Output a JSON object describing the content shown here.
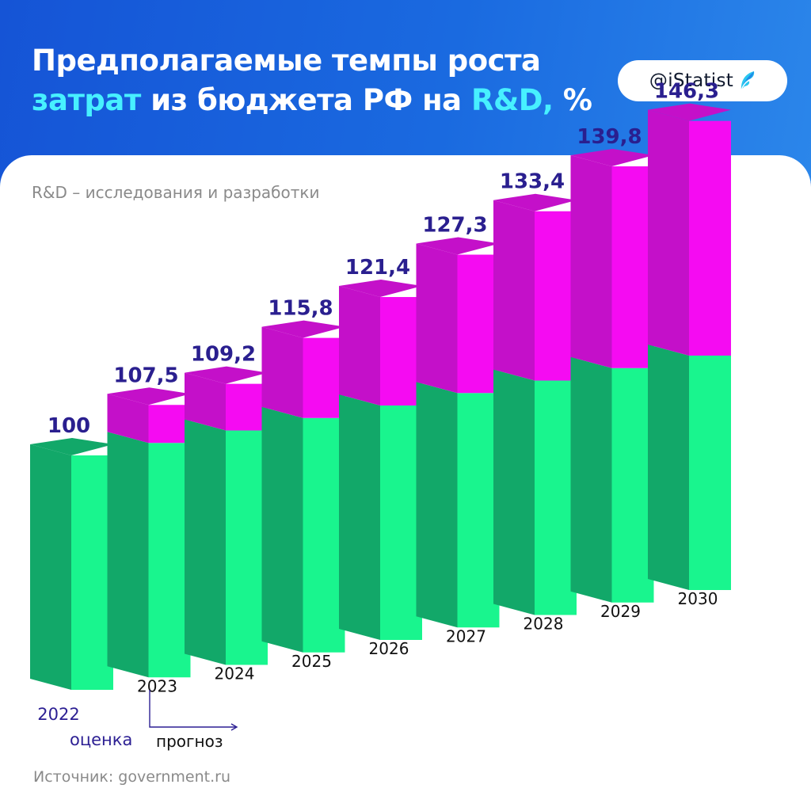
{
  "header": {
    "title_line1": "Предполагаемые темпы роста",
    "title_line2_hl1": "затрат",
    "title_line2_mid": " из бюджета РФ на ",
    "title_line2_hl2": "R&D,",
    "title_line2_end": " %"
  },
  "brand": {
    "label": "@iStatist",
    "icon": "istatist-leaf-logo"
  },
  "subtitle": "R&D – исследования и разработки",
  "notes": {
    "estimate": "оценка",
    "forecast": "прогноз"
  },
  "source": "Источник: government.ru",
  "colors": {
    "base_front": "#19f58e",
    "base_side": "#12a869",
    "growth_front": "#f50bf2",
    "growth_side": "#c410c9",
    "value_text": "#2a1f8f"
  },
  "chart_data": {
    "type": "bar",
    "title": "Предполагаемые темпы роста затрат из бюджета РФ на R&D, %",
    "subtitle": "R&D – исследования и разработки",
    "categories": [
      "2022",
      "2023",
      "2024",
      "2025",
      "2026",
      "2027",
      "2028",
      "2029",
      "2030"
    ],
    "values": [
      100,
      107.5,
      109.2,
      115.8,
      121.4,
      127.3,
      133.4,
      139.8,
      146.3
    ],
    "value_labels": [
      "100",
      "107,5",
      "109,2",
      "115,8",
      "121,4",
      "127,3",
      "133,4",
      "139,8",
      "146,3"
    ],
    "category_notes": {
      "2022": "оценка"
    },
    "forecast_note": "прогноз",
    "baseline_value": 100,
    "grid": false,
    "legend": "none"
  }
}
